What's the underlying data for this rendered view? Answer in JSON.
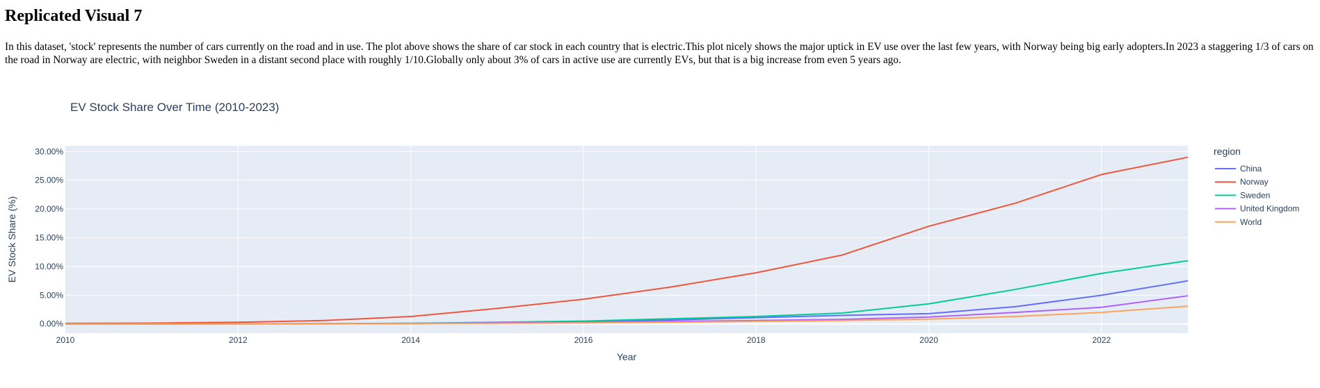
{
  "page": {
    "title": "Replicated Visual 7",
    "description": "In this dataset, 'stock' represents the number of cars currently on the road and in use. The plot above shows the share of car stock in each country that is electric.This plot nicely shows the major uptick in EV use over the last few years, with Norway being big early adopters.In 2023 a staggering 1/3 of cars on the road in Norway are electric, with neighbor Sweden in a distant second place with roughly 1/10.Globally only about 3% of cars in active use are currently EVs, but that is a big increase from even 5 years ago."
  },
  "chart_data": {
    "type": "line",
    "title": "EV Stock Share Over Time (2010-2023)",
    "xlabel": "Year",
    "ylabel": "EV Stock Share (%)",
    "xlim": [
      2010,
      2023
    ],
    "ylim": [
      -1.6,
      31.0
    ],
    "x_ticks": [
      2010,
      2012,
      2014,
      2016,
      2018,
      2020,
      2022
    ],
    "y_ticks": [
      0,
      5,
      10,
      15,
      20,
      25,
      30
    ],
    "y_tick_labels": [
      "0.00%",
      "5.00%",
      "10.00%",
      "15.00%",
      "20.00%",
      "25.00%",
      "30.00%"
    ],
    "grid": true,
    "plot_background": "#e5ecf6",
    "legend_title": "region",
    "legend_position": "right",
    "x": [
      2010,
      2011,
      2012,
      2013,
      2014,
      2015,
      2016,
      2017,
      2018,
      2019,
      2020,
      2021,
      2022,
      2023
    ],
    "series": [
      {
        "name": "China",
        "color": "#636efa",
        "values": [
          0.0,
          0.0,
          0.01,
          0.02,
          0.05,
          0.2,
          0.4,
          0.7,
          1.1,
          1.5,
          1.8,
          3.0,
          5.0,
          7.5
        ]
      },
      {
        "name": "Norway",
        "color": "#ef553b",
        "values": [
          0.1,
          0.15,
          0.3,
          0.6,
          1.3,
          2.7,
          4.3,
          6.4,
          8.9,
          12.0,
          17.0,
          21.0,
          26.0,
          29.0
        ]
      },
      {
        "name": "Sweden",
        "color": "#00cc96",
        "values": [
          0.0,
          0.01,
          0.03,
          0.06,
          0.12,
          0.3,
          0.5,
          0.9,
          1.3,
          1.9,
          3.5,
          6.0,
          8.8,
          11.0
        ]
      },
      {
        "name": "United Kingdom",
        "color": "#ab63fa",
        "values": [
          0.0,
          0.0,
          0.02,
          0.04,
          0.1,
          0.2,
          0.3,
          0.45,
          0.6,
          0.8,
          1.2,
          2.0,
          2.9,
          4.9
        ]
      },
      {
        "name": "World",
        "color": "#ffa15a",
        "values": [
          0.0,
          0.0,
          0.01,
          0.02,
          0.05,
          0.1,
          0.18,
          0.3,
          0.45,
          0.6,
          0.85,
          1.3,
          2.0,
          3.1
        ]
      }
    ]
  }
}
